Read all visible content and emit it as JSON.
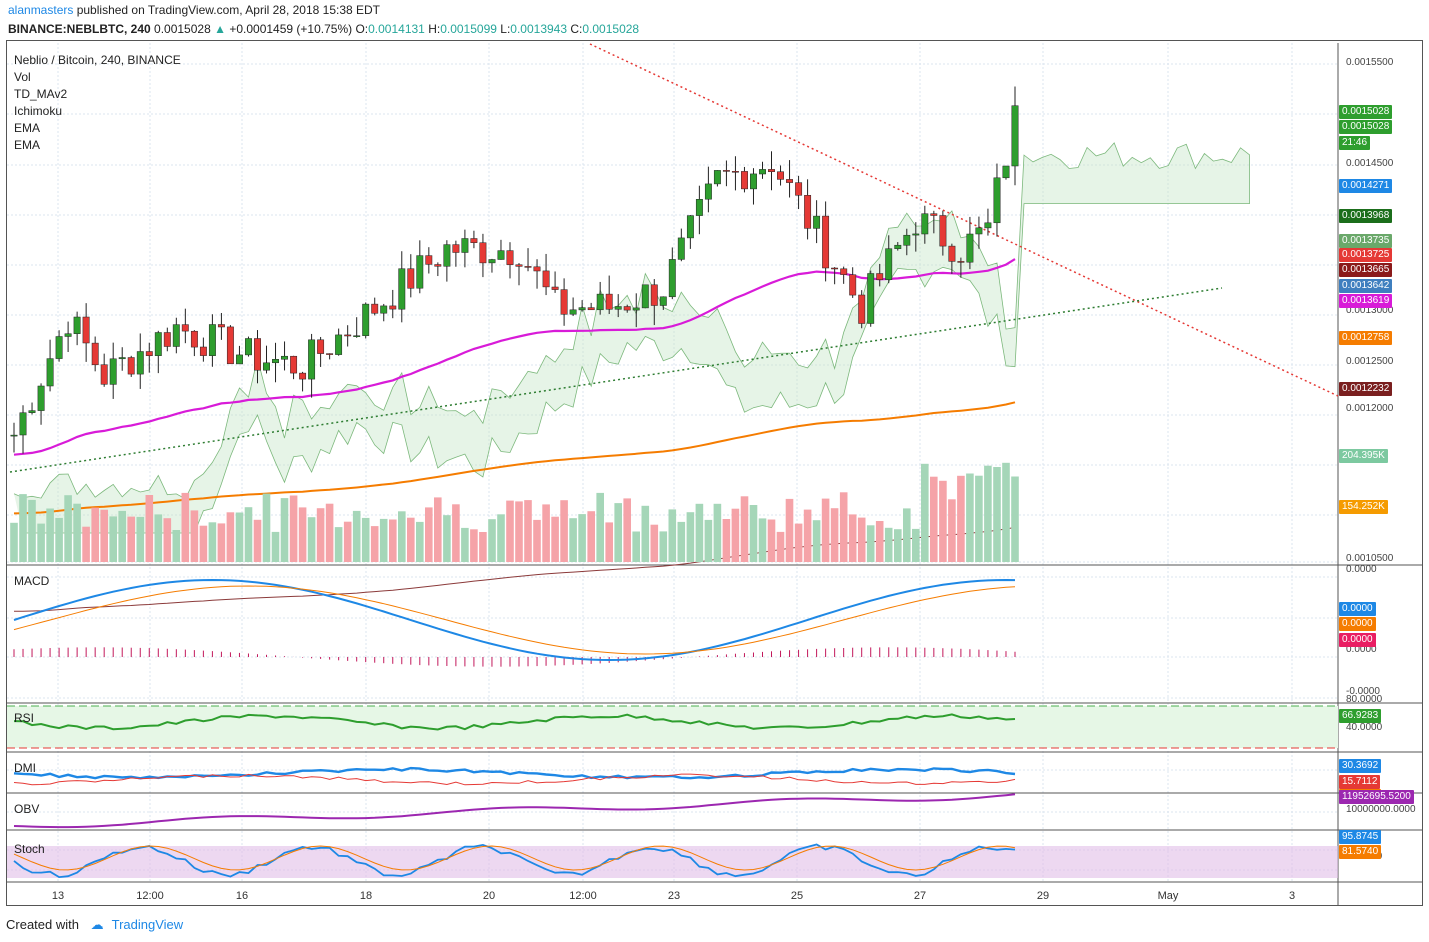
{
  "header": {
    "user": "alanmasters",
    "published": " published on TradingView.com, April 28, 2018 15:38 EDT"
  },
  "ohlc": {
    "symbol": "BINANCE:NEBLBTC, 240",
    "last": "0.0015028",
    "change": "+0.0001459 (+10.75%)",
    "o_label": "O:",
    "o": "0.0014131",
    "h_label": "H:",
    "h": "0.0015099",
    "l_label": "L:",
    "l": "0.0013943",
    "c_label": "C:",
    "c": "0.0015028"
  },
  "legend": [
    "Neblio / Bitcoin, 240, BINANCE",
    "Vol",
    "TD_MAv2",
    "Ichimoku",
    "EMA",
    "EMA"
  ],
  "panes": {
    "macd": "MACD",
    "rsi": "RSI",
    "dmi": "DMI",
    "obv": "OBV",
    "stoch": "Stoch"
  },
  "price_axis": {
    "labels": [
      "0.0015500",
      "0.0014500",
      "0.0013000",
      "0.0012500",
      "0.0012000",
      "0.0010500"
    ]
  },
  "price_tags": [
    {
      "text": "0.0015028",
      "color": "#2e9e2e"
    },
    {
      "text": "0.0015028",
      "color": "#2e9e2e"
    },
    {
      "text": "21:46",
      "color": "#2e9e2e"
    },
    {
      "text": "0.0014271",
      "color": "#1e88e5"
    },
    {
      "text": "0.0013968",
      "color": "#1b6e1b"
    },
    {
      "text": "0.0013735",
      "color": "#6aa86a"
    },
    {
      "text": "0.0013725",
      "color": "#e53935"
    },
    {
      "text": "0.0013665",
      "color": "#8b1a1a"
    },
    {
      "text": "0.0013642",
      "color": "#3f7fbf"
    },
    {
      "text": "0.0013619",
      "color": "#d81bd8"
    },
    {
      "text": "0.0012758",
      "color": "#f57c00"
    },
    {
      "text": "0.0012232",
      "color": "#7a1f1f"
    },
    {
      "text": "204.395K",
      "color": "#7cc9a0"
    },
    {
      "text": "154.252K",
      "color": "#f59b00"
    }
  ],
  "macd_axis": [
    "0.0000",
    "0.0000",
    "-0.0000"
  ],
  "macd_tags": [
    {
      "text": "0.0000",
      "color": "#1e88e5"
    },
    {
      "text": "0.0000",
      "color": "#f57c00"
    },
    {
      "text": "0.0000",
      "color": "#e91e63"
    }
  ],
  "rsi_axis": [
    "80.0000",
    "40.0000"
  ],
  "rsi_tags": [
    {
      "text": "66.9283",
      "color": "#2e9e2e"
    }
  ],
  "dmi_tags": [
    {
      "text": "30.3692",
      "color": "#1e88e5"
    },
    {
      "text": "15.7112",
      "color": "#e53935"
    },
    {
      "text": "41.9282",
      "color": "#f57c00"
    }
  ],
  "obv_axis": [
    "10000000.0000"
  ],
  "obv_tags": [
    {
      "text": "11952695.5200",
      "color": "#9c27b0"
    }
  ],
  "stoch_axis": [
    "50.0000"
  ],
  "stoch_tags": [
    {
      "text": "95.8745",
      "color": "#1e88e5"
    },
    {
      "text": "81.5740",
      "color": "#f57c00"
    }
  ],
  "time_axis": [
    "13",
    "12:00",
    "16",
    "18",
    "20",
    "12:00",
    "23",
    "25",
    "27",
    "29",
    "May",
    "3"
  ],
  "footer": {
    "created": "Created with",
    "brand": "TradingView"
  },
  "chart_data": {
    "type": "candlestick",
    "title": "Neblio / Bitcoin, 240, BINANCE",
    "timeframe": "240",
    "ylim": [
      0.00105,
      0.00158
    ],
    "series": [
      {
        "name": "NEBLBTC",
        "values_approx": {
          "first_close": 0.00118,
          "high_max": 0.0015099,
          "low_min": 0.00117,
          "last_close": 0.0015028
        }
      }
    ],
    "indicators": [
      "Vol",
      "TD_MAv2",
      "Ichimoku",
      "EMA",
      "EMA",
      "MACD",
      "RSI",
      "DMI",
      "OBV",
      "Stoch"
    ],
    "annotations": [
      "descending red dotted trendline",
      "ascending green dotted trendline"
    ]
  },
  "colors": {
    "up": "#2e9e2e",
    "down": "#e53935",
    "ema_fast": "#d81bd8",
    "ema_slow": "#f57c00"
  }
}
